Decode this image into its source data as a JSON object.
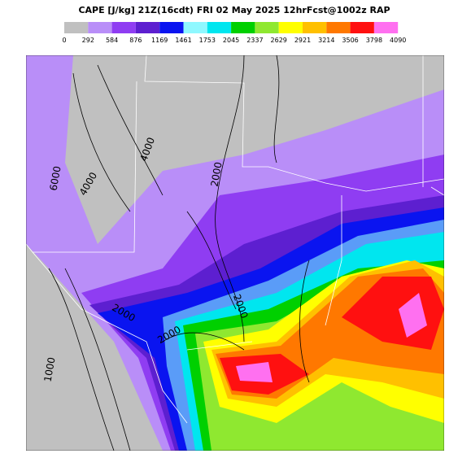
{
  "header": {
    "title": "CAPE [J/kg] 21Z(16cdt) FRI 02 May 2025 12hrFcst@1002z RAP"
  },
  "colorbar": {
    "colors": [
      "#c0c0c0",
      "#b98ef8",
      "#8f3df2",
      "#5d1fd0",
      "#0a14f0",
      "#8ff8ff",
      "#00e6ef",
      "#00d000",
      "#8fe830",
      "#ffff00",
      "#ffc000",
      "#ff7800",
      "#ff1010",
      "#ff70f0"
    ],
    "labels": [
      0,
      292,
      584,
      876,
      1169,
      1461,
      1753,
      2045,
      2337,
      2629,
      2921,
      3214,
      3506,
      3798,
      4090
    ]
  },
  "map": {
    "contour_labels": [
      "6000",
      "4000",
      "4000",
      "2000",
      "2000",
      "2000",
      "1000",
      "2000"
    ]
  }
}
